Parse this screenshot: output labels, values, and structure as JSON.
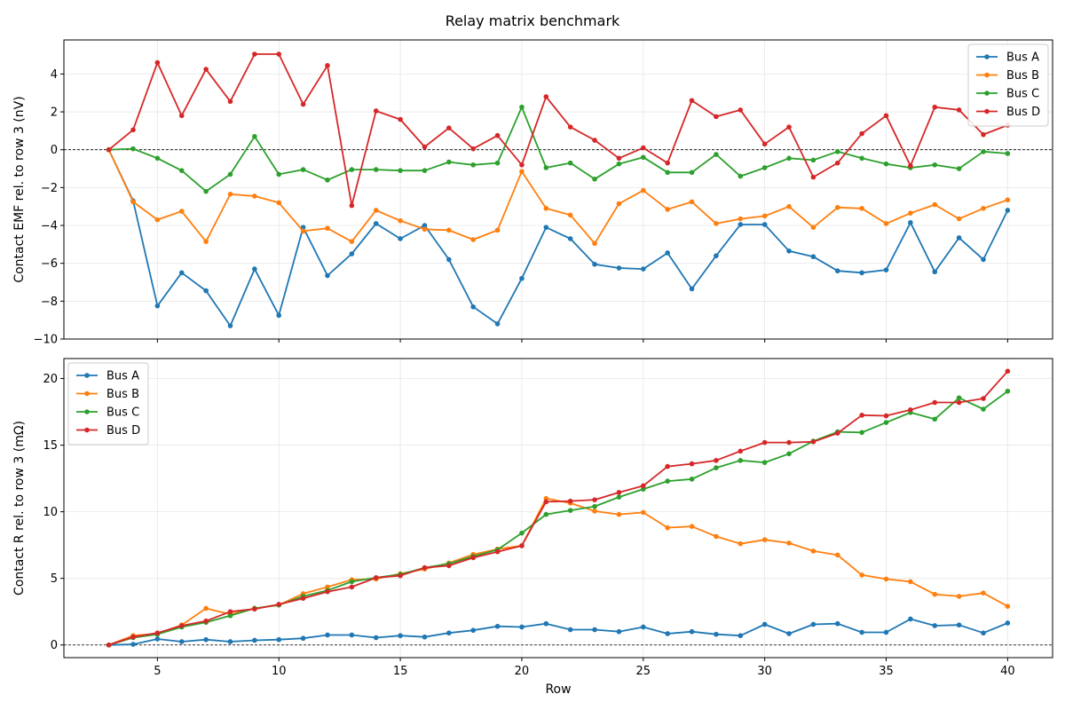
{
  "chart_data": {
    "title": "Relay matrix benchmark",
    "xlabel": "Row",
    "x": [
      3,
      4,
      5,
      6,
      7,
      8,
      9,
      10,
      11,
      12,
      13,
      14,
      15,
      16,
      17,
      18,
      19,
      20,
      21,
      22,
      23,
      24,
      25,
      26,
      27,
      28,
      29,
      30,
      31,
      32,
      33,
      34,
      35,
      36,
      37,
      38,
      39,
      40
    ],
    "xlim": [
      1.15,
      41.85
    ],
    "xticks": [
      5,
      10,
      15,
      20,
      25,
      30,
      35,
      40
    ],
    "colors": {
      "Bus A": "#1f77b4",
      "Bus B": "#ff7f0e",
      "Bus C": "#2ca02c",
      "Bus D": "#d62728"
    },
    "panels": [
      {
        "type": "line",
        "ylabel": "Contact EMF rel. to row 3  (nV)",
        "ylim": [
          -10,
          5.8
        ],
        "yticks": [
          -10,
          -8,
          -6,
          -4,
          -2,
          0,
          2,
          4
        ],
        "ytick_labels": [
          "−10",
          "−8",
          "−6",
          "−4",
          "−2",
          "0",
          "2",
          "4"
        ],
        "legend": "upper right",
        "grid": true,
        "zero_line": true,
        "series": [
          {
            "name": "Bus A",
            "values": [
              0,
              -2.7,
              -8.25,
              -6.5,
              -7.45,
              -9.3,
              -6.3,
              -8.75,
              -4.1,
              -6.65,
              -5.5,
              -3.9,
              -4.7,
              -4.0,
              -5.8,
              -8.3,
              -9.2,
              -6.8,
              -4.1,
              -4.7,
              -6.05,
              -6.25,
              -6.3,
              -5.45,
              -7.35,
              -5.6,
              -3.95,
              -3.95,
              -5.35,
              -5.65,
              -6.4,
              -6.5,
              -6.35,
              -3.85,
              -6.45,
              -4.65,
              -5.8,
              -3.2
            ]
          },
          {
            "name": "Bus B",
            "values": [
              0,
              -2.75,
              -3.7,
              -3.25,
              -4.85,
              -2.35,
              -2.45,
              -2.8,
              -4.3,
              -4.15,
              -4.85,
              -3.2,
              -3.75,
              -4.2,
              -4.25,
              -4.75,
              -4.25,
              -1.15,
              -3.1,
              -3.45,
              -4.95,
              -2.85,
              -2.15,
              -3.15,
              -2.75,
              -3.9,
              -3.65,
              -3.5,
              -3.0,
              -4.1,
              -3.05,
              -3.1,
              -3.9,
              -3.35,
              -2.9,
              -3.65,
              -3.1,
              -2.65
            ]
          },
          {
            "name": "Bus C",
            "values": [
              0,
              0.05,
              -0.45,
              -1.1,
              -2.2,
              -1.3,
              0.7,
              -1.3,
              -1.05,
              -1.6,
              -1.05,
              -1.05,
              -1.1,
              -1.1,
              -0.65,
              -0.8,
              -0.7,
              2.25,
              -0.95,
              -0.7,
              -1.55,
              -0.75,
              -0.4,
              -1.2,
              -1.2,
              -0.25,
              -1.4,
              -0.95,
              -0.45,
              -0.55,
              -0.1,
              -0.45,
              -0.75,
              -0.95,
              -0.8,
              -1.0,
              -0.1,
              -0.2
            ]
          },
          {
            "name": "Bus D",
            "values": [
              0,
              1.05,
              4.6,
              1.8,
              4.25,
              2.55,
              5.05,
              5.05,
              2.4,
              4.45,
              -2.95,
              2.05,
              1.6,
              0.15,
              1.15,
              0.05,
              0.75,
              -0.8,
              2.8,
              1.2,
              0.5,
              -0.45,
              0.1,
              -0.7,
              2.6,
              1.75,
              2.1,
              0.3,
              1.2,
              -1.45,
              -0.7,
              0.85,
              1.8,
              -0.85,
              2.25,
              2.1,
              0.8,
              1.3
            ]
          }
        ]
      },
      {
        "type": "line",
        "ylabel": "Contact R rel. to row 3  (mΩ)",
        "ylim": [
          -0.95,
          21.5
        ],
        "yticks": [
          0,
          5,
          10,
          15,
          20
        ],
        "ytick_labels": [
          "0",
          "5",
          "10",
          "15",
          "20"
        ],
        "legend": "upper left",
        "grid": true,
        "zero_line": true,
        "series": [
          {
            "name": "Bus A",
            "values": [
              0,
              0.05,
              0.45,
              0.25,
              0.4,
              0.25,
              0.35,
              0.4,
              0.5,
              0.75,
              0.75,
              0.55,
              0.7,
              0.6,
              0.9,
              1.1,
              1.4,
              1.35,
              1.6,
              1.15,
              1.15,
              1.0,
              1.35,
              0.85,
              1.0,
              0.8,
              0.7,
              1.55,
              0.85,
              1.55,
              1.6,
              0.95,
              0.95,
              1.95,
              1.45,
              1.5,
              0.9,
              1.65
            ]
          },
          {
            "name": "Bus B",
            "values": [
              0,
              0.7,
              0.85,
              1.5,
              2.75,
              2.3,
              2.75,
              3.0,
              3.85,
              4.35,
              4.9,
              4.95,
              5.35,
              5.7,
              6.15,
              6.8,
              7.2,
              7.45,
              11.0,
              10.65,
              10.05,
              9.8,
              9.95,
              8.8,
              8.9,
              8.15,
              7.6,
              7.9,
              7.65,
              7.05,
              6.75,
              5.25,
              4.95,
              4.75,
              3.8,
              3.65,
              3.9,
              2.9
            ]
          },
          {
            "name": "Bus C",
            "values": [
              0,
              0.55,
              0.8,
              1.35,
              1.7,
              2.2,
              2.75,
              3.0,
              3.65,
              4.1,
              4.75,
              5.05,
              5.3,
              5.8,
              6.1,
              6.65,
              7.15,
              8.4,
              9.8,
              10.1,
              10.4,
              11.1,
              11.7,
              12.3,
              12.45,
              13.3,
              13.85,
              13.7,
              14.35,
              15.3,
              16.0,
              15.95,
              16.7,
              17.45,
              16.95,
              18.55,
              17.7,
              19.05
            ]
          },
          {
            "name": "Bus D",
            "values": [
              0,
              0.6,
              0.9,
              1.45,
              1.8,
              2.5,
              2.7,
              3.05,
              3.5,
              4.0,
              4.35,
              5.05,
              5.2,
              5.8,
              5.95,
              6.55,
              7.0,
              7.45,
              10.75,
              10.8,
              10.9,
              11.45,
              11.95,
              13.4,
              13.6,
              13.85,
              14.55,
              15.2,
              15.2,
              15.25,
              15.9,
              17.25,
              17.2,
              17.65,
              18.2,
              18.2,
              18.5,
              20.55
            ]
          }
        ]
      }
    ]
  }
}
